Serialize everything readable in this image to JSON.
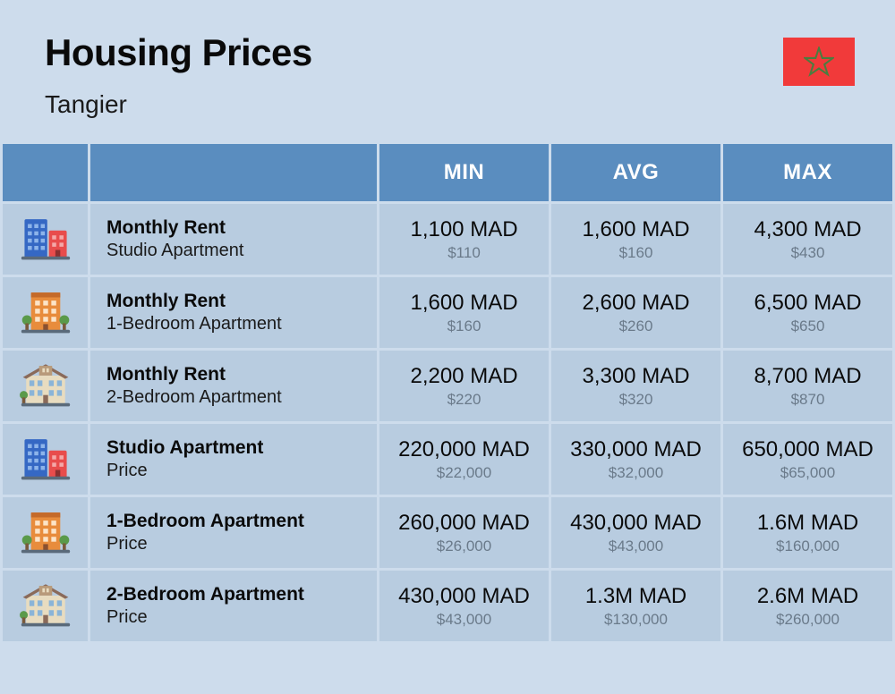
{
  "header": {
    "title": "Housing Prices",
    "subtitle": "Tangier"
  },
  "columns": [
    "MIN",
    "AVG",
    "MAX"
  ],
  "rows": [
    {
      "icon": "building-colorful",
      "title": "Monthly Rent",
      "subtitle": "Studio Apartment",
      "min": {
        "main": "1,100 MAD",
        "sub": "$110"
      },
      "avg": {
        "main": "1,600 MAD",
        "sub": "$160"
      },
      "max": {
        "main": "4,300 MAD",
        "sub": "$430"
      }
    },
    {
      "icon": "building-orange",
      "title": "Monthly Rent",
      "subtitle": "1-Bedroom Apartment",
      "min": {
        "main": "1,600 MAD",
        "sub": "$160"
      },
      "avg": {
        "main": "2,600 MAD",
        "sub": "$260"
      },
      "max": {
        "main": "6,500 MAD",
        "sub": "$650"
      }
    },
    {
      "icon": "building-house",
      "title": "Monthly Rent",
      "subtitle": "2-Bedroom Apartment",
      "min": {
        "main": "2,200 MAD",
        "sub": "$220"
      },
      "avg": {
        "main": "3,300 MAD",
        "sub": "$320"
      },
      "max": {
        "main": "8,700 MAD",
        "sub": "$870"
      }
    },
    {
      "icon": "building-colorful",
      "title": "Studio Apartment",
      "subtitle": "Price",
      "min": {
        "main": "220,000 MAD",
        "sub": "$22,000"
      },
      "avg": {
        "main": "330,000 MAD",
        "sub": "$32,000"
      },
      "max": {
        "main": "650,000 MAD",
        "sub": "$65,000"
      }
    },
    {
      "icon": "building-orange",
      "title": "1-Bedroom Apartment",
      "subtitle": "Price",
      "min": {
        "main": "260,000 MAD",
        "sub": "$26,000"
      },
      "avg": {
        "main": "430,000 MAD",
        "sub": "$43,000"
      },
      "max": {
        "main": "1.6M MAD",
        "sub": "$160,000"
      }
    },
    {
      "icon": "building-house",
      "title": "2-Bedroom Apartment",
      "subtitle": "Price",
      "min": {
        "main": "430,000 MAD",
        "sub": "$43,000"
      },
      "avg": {
        "main": "1.3M MAD",
        "sub": "$130,000"
      },
      "max": {
        "main": "2.6M MAD",
        "sub": "$260,000"
      }
    }
  ],
  "styling": {
    "background": "#cddcec",
    "header_bg": "#5a8dbf",
    "header_text": "#ffffff",
    "cell_bg": "#b8cce0",
    "text_color": "#0a0a0a",
    "sub_text_color": "#6a7a8a",
    "flag_bg": "#f13a3a",
    "flag_star": "#4a7d3f"
  }
}
